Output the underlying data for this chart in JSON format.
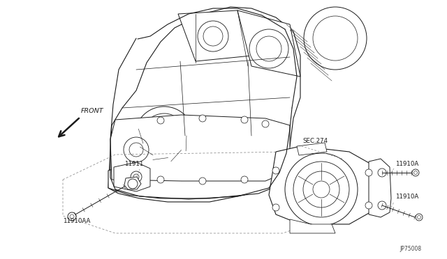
{
  "bg_color": "#ffffff",
  "line_color": "#1a1a1a",
  "diagram_code": "JP75008",
  "labels": {
    "front": "FRONT",
    "sec274": "SEC.274",
    "11911": "11911",
    "11910aa": "11910AA",
    "11910a_1": "11910A",
    "11910a_2": "11910A"
  },
  "figsize": [
    6.4,
    3.72
  ],
  "dpi": 100
}
